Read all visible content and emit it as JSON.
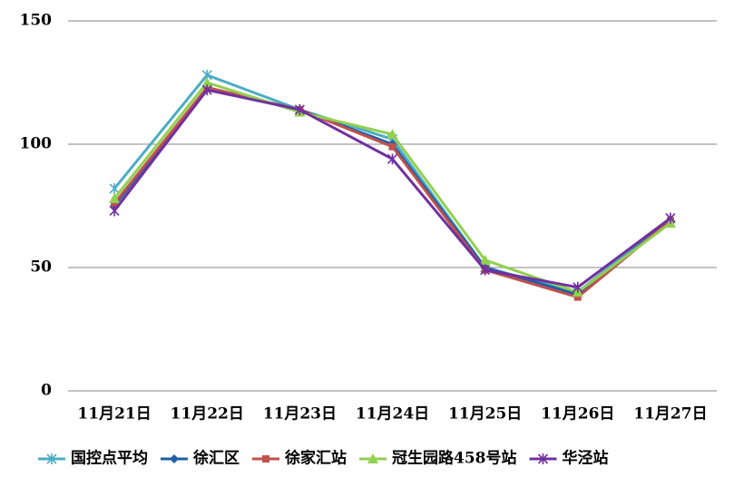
{
  "chart_data": {
    "type": "line",
    "categories": [
      "11月21日",
      "11月22日",
      "11月23日",
      "11月24日",
      "11月25日",
      "11月26日",
      "11月27日"
    ],
    "series": [
      {
        "name": "国控点平均",
        "color": "#4bacc6",
        "marker": "star",
        "values": [
          82,
          128,
          114,
          102,
          50,
          40,
          70
        ]
      },
      {
        "name": "徐汇区",
        "color": "#1f5fa8",
        "marker": "diamond",
        "values": [
          75,
          123,
          114,
          100,
          50,
          39,
          69
        ]
      },
      {
        "name": "徐家汇站",
        "color": "#c0504d",
        "marker": "square",
        "values": [
          76,
          123,
          114,
          99,
          49,
          38,
          69
        ]
      },
      {
        "name": "冠生园路458号站",
        "color": "#92d050",
        "marker": "triangle",
        "values": [
          78,
          125,
          113,
          104,
          53,
          40,
          68
        ]
      },
      {
        "name": "华泾站",
        "color": "#7030a0",
        "marker": "star",
        "values": [
          73,
          122,
          114,
          94,
          49,
          42,
          70
        ]
      }
    ],
    "ylim": [
      0,
      150
    ],
    "yticks": [
      0,
      50,
      100,
      150
    ],
    "grid": true,
    "legend": "bottom"
  }
}
